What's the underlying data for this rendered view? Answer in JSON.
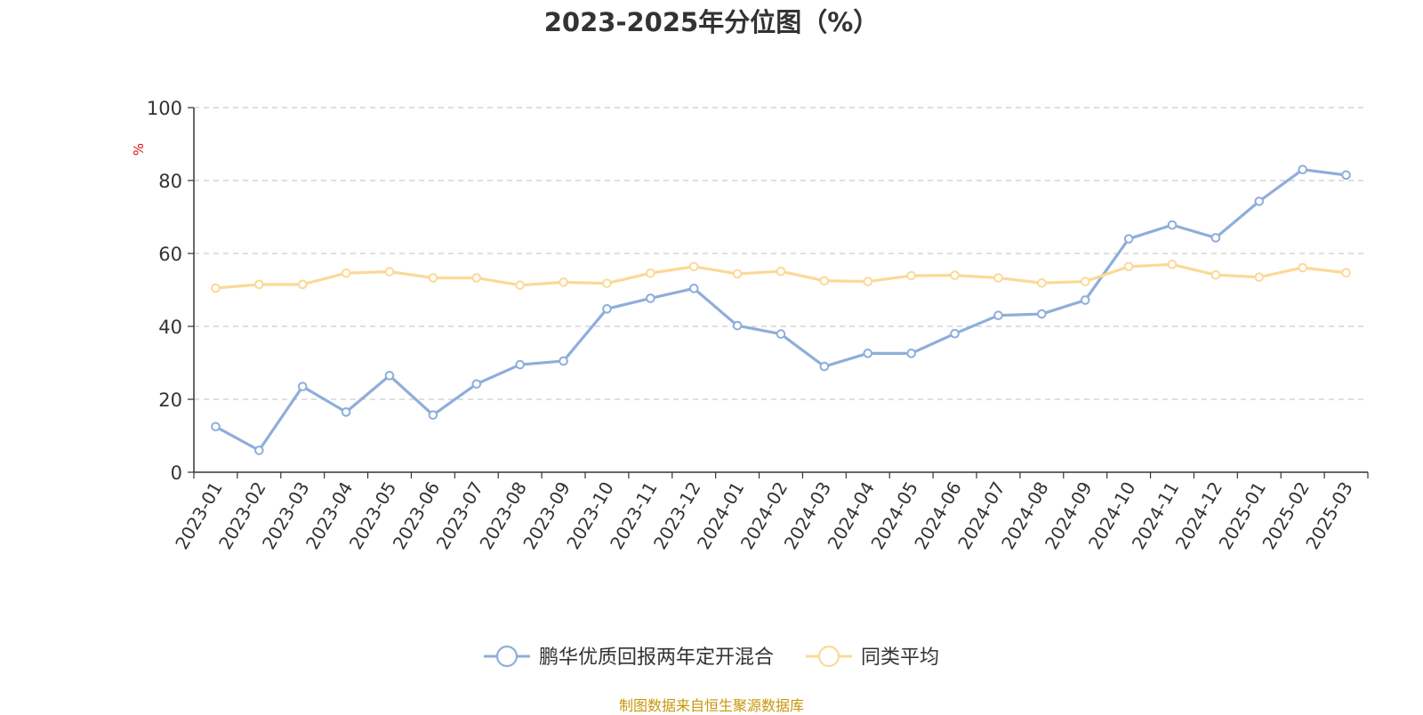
{
  "chart_data": {
    "type": "line",
    "title": "2023-2025年分位图（%）",
    "ylabel": "%",
    "ylim": [
      0,
      100
    ],
    "yticks": [
      0,
      20,
      40,
      60,
      80,
      100
    ],
    "grid": true,
    "legend_position": "bottom",
    "categories": [
      "2023-01",
      "2023-02",
      "2023-03",
      "2023-04",
      "2023-05",
      "2023-06",
      "2023-07",
      "2023-08",
      "2023-09",
      "2023-10",
      "2023-11",
      "2023-12",
      "2024-01",
      "2024-02",
      "2024-03",
      "2024-04",
      "2024-05",
      "2024-06",
      "2024-07",
      "2024-08",
      "2024-09",
      "2024-10",
      "2024-11",
      "2024-12",
      "2025-01",
      "2025-02",
      "2025-03"
    ],
    "series": [
      {
        "name": "鹏华优质回报两年定开混合",
        "color": "#8eaedb",
        "values": [
          12.5,
          6,
          23.5,
          16.5,
          26.5,
          15.7,
          24.2,
          29.5,
          30.5,
          44.8,
          47.7,
          50.4,
          40.2,
          37.9,
          29,
          32.6,
          32.6,
          38,
          43,
          43.4,
          47.2,
          64,
          67.8,
          64.3,
          74.3,
          83,
          81.5
        ]
      },
      {
        "name": "同类平均",
        "color": "#fbd997",
        "values": [
          50.5,
          51.5,
          51.5,
          54.6,
          55,
          53.3,
          53.3,
          51.3,
          52.1,
          51.8,
          54.6,
          56.4,
          54.4,
          55.1,
          52.5,
          52.3,
          53.9,
          54,
          53.3,
          51.9,
          52.3,
          56.4,
          57,
          54.1,
          53.5,
          56.1,
          54.7
        ]
      }
    ]
  },
  "footer": {
    "source": "制图数据来自恒生聚源数据库"
  }
}
